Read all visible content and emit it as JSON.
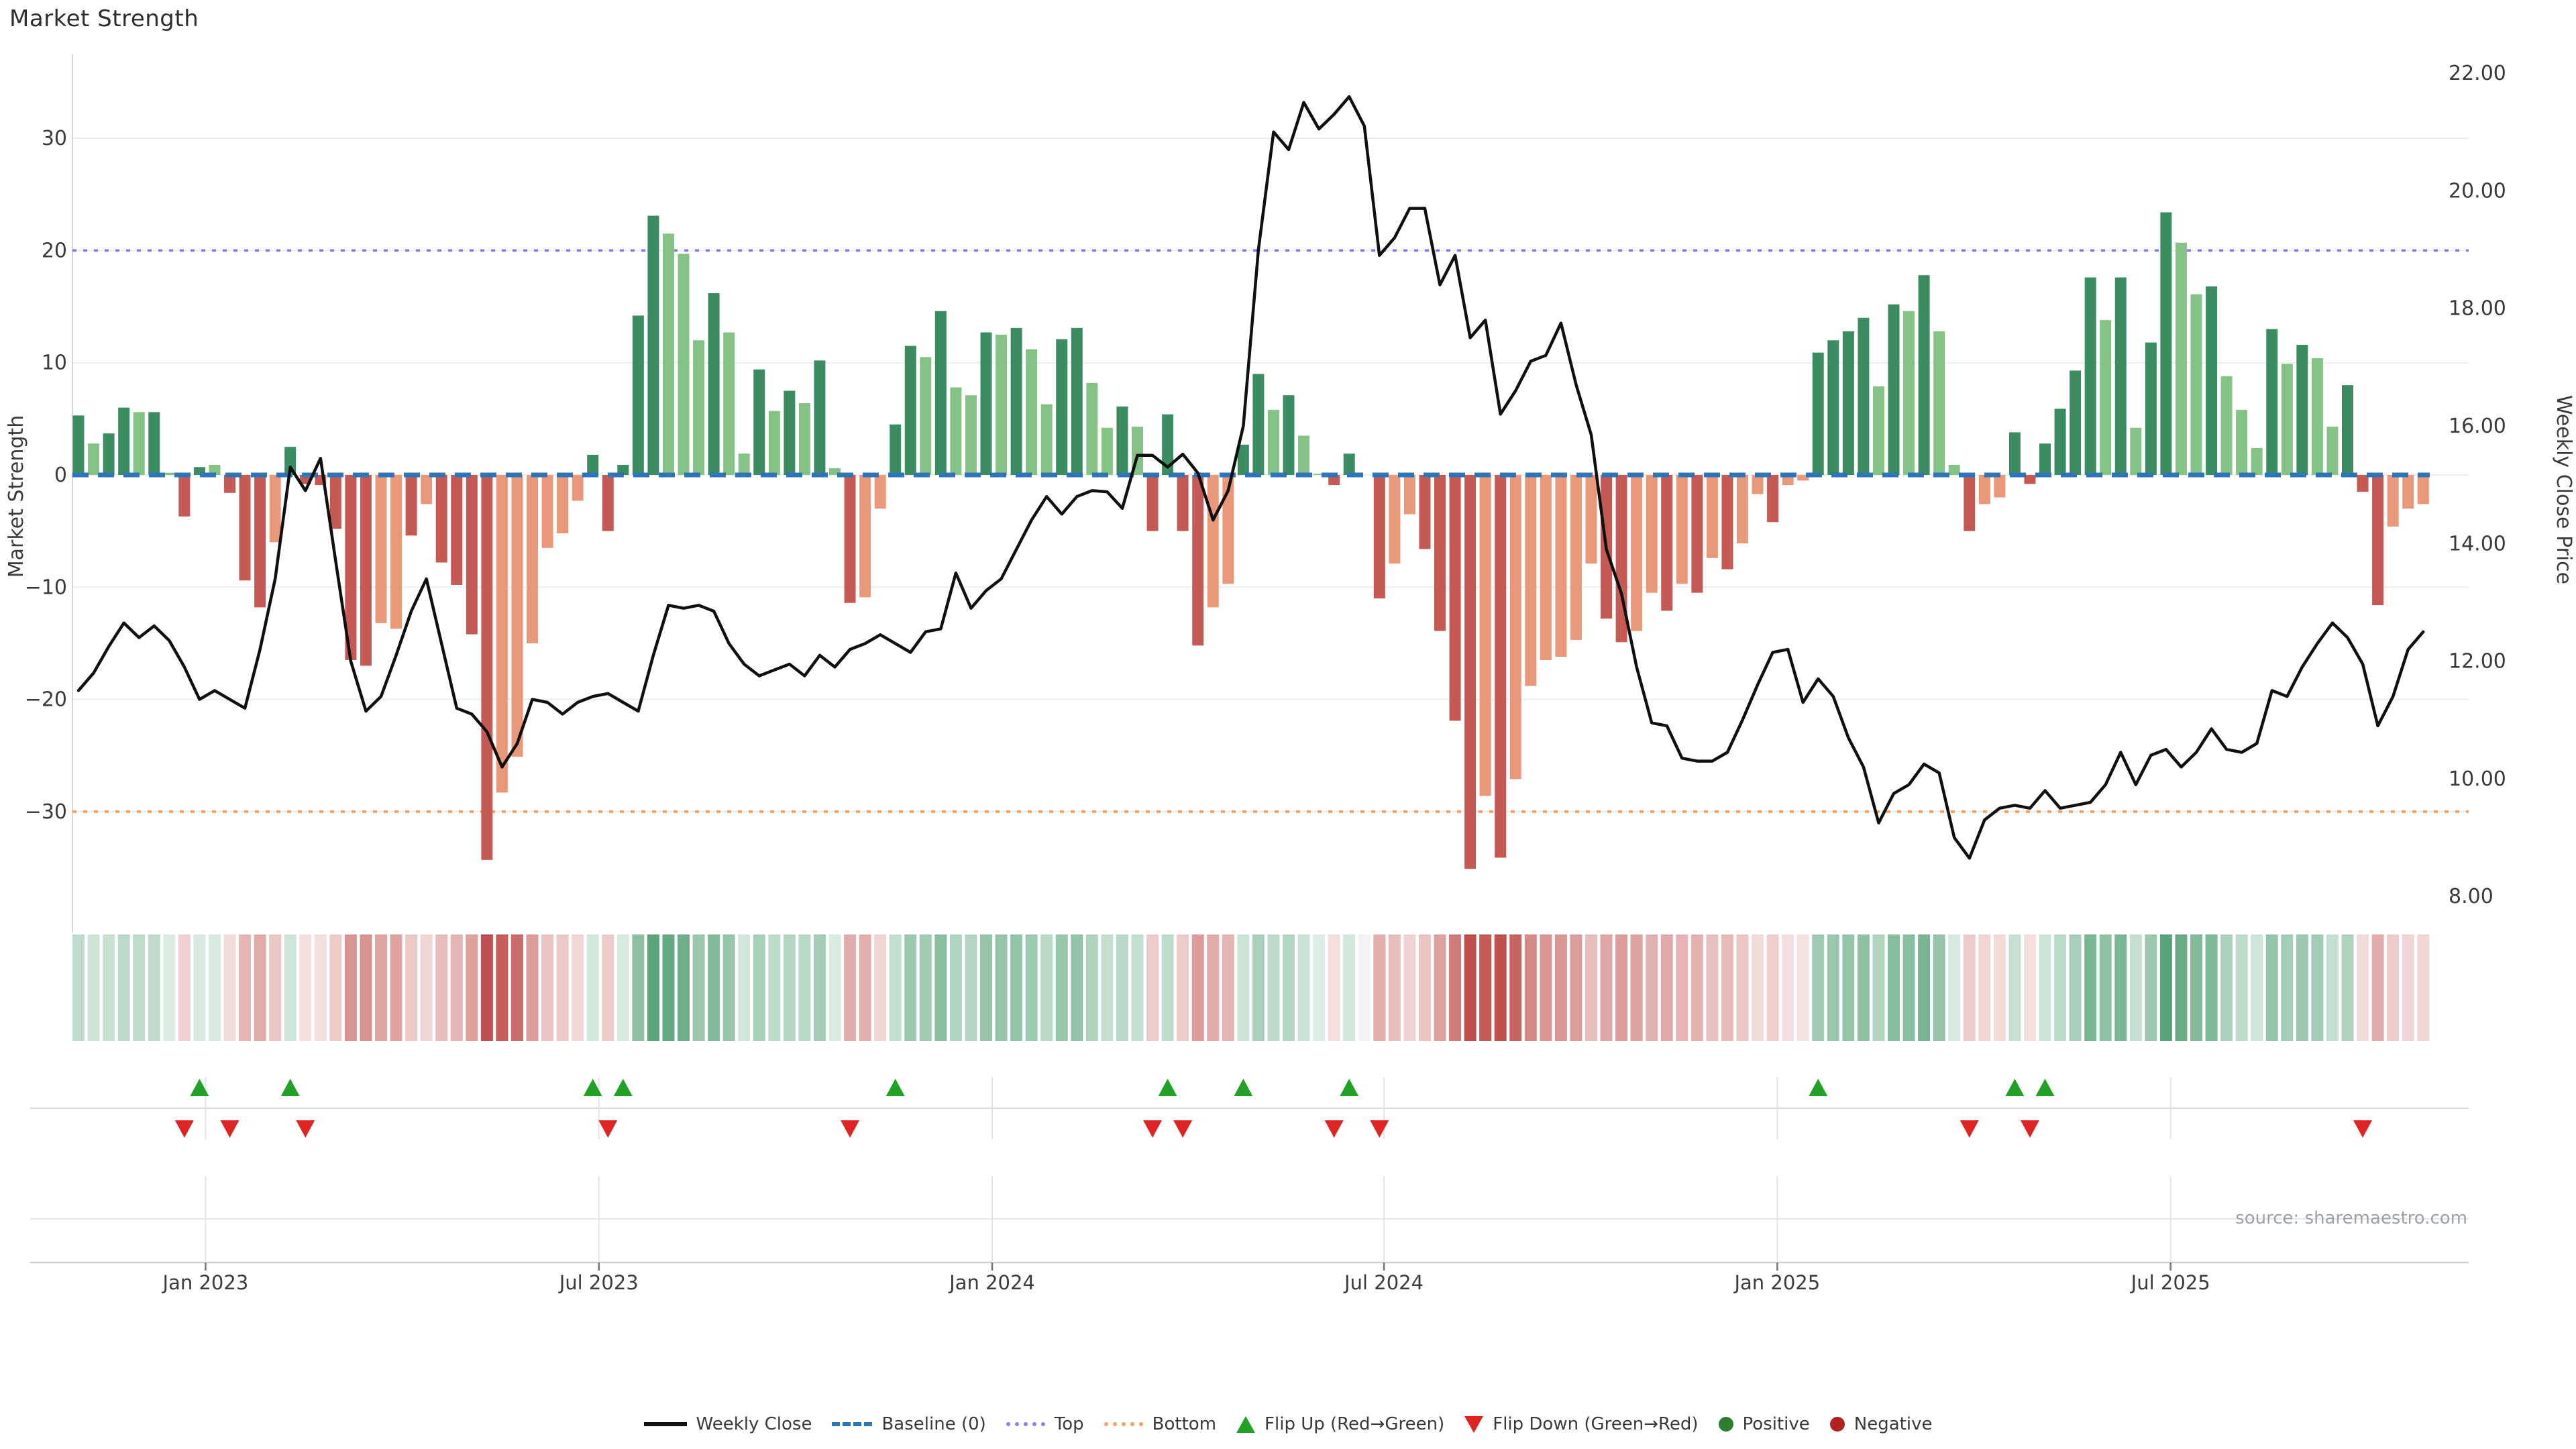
{
  "title": "Market Strength",
  "source": "source: sharemaestro.com",
  "left_axis": {
    "label": "Market Strength",
    "ticks": [
      30,
      20,
      10,
      0,
      -10,
      -20,
      -30
    ]
  },
  "right_axis": {
    "label": "Weekly Close Price",
    "ticks": [
      "22.00",
      "20.00",
      "18.00",
      "16.00",
      "14.00",
      "12.00",
      "10.00",
      "8.00"
    ]
  },
  "x_axis": {
    "ticks": [
      "Jan 2023",
      "Jul 2023",
      "Jan 2024",
      "Jul 2024",
      "Jan 2025",
      "Jul 2025"
    ],
    "tick_weeks": [
      9.4,
      35.4,
      61.4,
      87.3,
      113.3,
      139.3
    ]
  },
  "legend": [
    {
      "type": "line",
      "color": "#111111",
      "label": "Weekly Close"
    },
    {
      "type": "dash",
      "color": "#2e75b5",
      "label": "Baseline (0)"
    },
    {
      "type": "dots",
      "color": "#8d80e8",
      "label": "Top"
    },
    {
      "type": "dots-o",
      "color": "#f2a263",
      "label": "Bottom"
    },
    {
      "type": "triup",
      "color": "#23a127",
      "label": "Flip Up (Red→Green)"
    },
    {
      "type": "tridown",
      "color": "#e02424",
      "label": "Flip Down (Green→Red)"
    },
    {
      "type": "dot",
      "color": "#2e7d32",
      "label": "Positive"
    },
    {
      "type": "dot",
      "color": "#b22222",
      "label": "Negative"
    }
  ],
  "colors": {
    "bar_dark_green": "#3c8c61",
    "bar_light_green": "#85c285",
    "bar_dark_red": "#c55a55",
    "bar_salmon": "#e99879",
    "baseline": "#2e75b5",
    "top_line": "#8d80e8",
    "bottom_line": "#f2a263",
    "price_line": "#101010",
    "grid": "#ebedf0",
    "axis": "#cfcfd4",
    "tick_text": "#3a3a3a",
    "source_text": "#9aa1a8",
    "flip_up": "#23a127",
    "flip_down": "#e02424"
  },
  "chart_data": {
    "type": "bar+line",
    "title": "Market Strength",
    "ylabel_left": "Market Strength",
    "ylabel_right": "Weekly Close Price",
    "ylim_left": [
      -37,
      37
    ],
    "ylim_right": [
      7.4,
      22.2
    ],
    "baseline": 0,
    "top_threshold": 20,
    "bottom_threshold": -30,
    "weeks": 156,
    "strength": {
      "name": "Market Strength (weekly bars)",
      "values": [
        5.3,
        2.8,
        3.7,
        6.0,
        5.6,
        5.6,
        0.2,
        -3.7,
        0.7,
        0.9,
        -1.6,
        -9.4,
        -11.8,
        -6.0,
        2.5,
        -0.8,
        -0.9,
        -4.8,
        -16.5,
        -17.0,
        -13.2,
        -13.7,
        -5.4,
        -2.6,
        -7.8,
        -9.8,
        -14.2,
        -34.3,
        -28.3,
        -25.1,
        -15.0,
        -6.5,
        -5.2,
        -2.3,
        1.8,
        -5.0,
        0.9,
        14.2,
        23.1,
        21.5,
        19.7,
        12.0,
        16.2,
        12.7,
        1.9,
        9.4,
        5.7,
        7.5,
        6.4,
        10.2,
        0.6,
        -11.4,
        -10.9,
        -3.0,
        4.5,
        11.5,
        10.5,
        14.6,
        7.8,
        7.1,
        12.7,
        12.5,
        13.1,
        11.2,
        6.3,
        12.1,
        13.1,
        8.2,
        4.2,
        6.1,
        4.3,
        -5.0,
        5.4,
        -5.0,
        -15.2,
        -11.8,
        -9.7,
        2.7,
        9.0,
        5.8,
        7.1,
        3.5,
        0.1,
        -0.9,
        1.9,
        0.0,
        -11.0,
        -7.9,
        -3.5,
        -6.6,
        -13.9,
        -21.9,
        -35.1,
        -28.6,
        -34.1,
        -27.1,
        -18.8,
        -16.5,
        -16.2,
        -14.7,
        -7.9,
        -12.8,
        -14.9,
        -13.9,
        -10.5,
        -12.1,
        -9.7,
        -10.5,
        -7.4,
        -8.4,
        -6.1,
        -1.7,
        -4.2,
        -0.9,
        -0.5,
        10.9,
        12.0,
        12.8,
        14.0,
        7.9,
        15.2,
        14.6,
        17.8,
        12.8,
        0.9,
        -5.0,
        -2.6,
        -2.0,
        3.8,
        -0.8,
        2.8,
        5.9,
        9.3,
        17.6,
        13.8,
        17.6,
        4.2,
        11.8,
        23.4,
        20.7,
        16.1,
        16.8,
        8.8,
        5.8,
        2.4,
        13.0,
        9.9,
        11.6,
        10.4,
        4.3,
        8.0,
        -1.5,
        -11.6,
        -4.6,
        -3.0,
        -2.6
      ],
      "shades": "DLDDLDLRDLRRRSDRRRRRSSRSRRRRSSSSSSDRDDDLLLDLLDLDLDLRSSDDLDLLDLDLLDDLLDLRDRRSSDDLDLLRDNRSSRRRRSRSSSSSSRRSSRSRSRSSRSSDDDDLDLDLLRSSDRDDDDLDLDDLLDLLLDLDLLDRRSSS",
      "shade_legend": {
        "D": "dark green (Positive strong)",
        "L": "light green (Positive)",
        "R": "dark red (Negative strong)",
        "S": "salmon (Negative)",
        "N": "zero / no bar"
      }
    },
    "weekly_close": {
      "name": "Weekly Close",
      "values": [
        11.5,
        11.8,
        12.25,
        12.65,
        12.4,
        12.6,
        12.35,
        11.9,
        11.35,
        11.5,
        11.35,
        11.2,
        12.2,
        13.4,
        15.3,
        14.9,
        15.45,
        13.7,
        12.0,
        11.15,
        11.4,
        12.1,
        12.85,
        13.4,
        12.3,
        11.2,
        11.1,
        10.8,
        10.2,
        10.6,
        11.35,
        11.3,
        11.1,
        11.3,
        11.4,
        11.45,
        11.3,
        11.15,
        12.1,
        12.95,
        12.9,
        12.95,
        12.85,
        12.3,
        11.95,
        11.75,
        11.85,
        11.95,
        11.75,
        12.1,
        11.9,
        12.2,
        12.3,
        12.45,
        12.3,
        12.15,
        12.5,
        12.55,
        13.5,
        12.9,
        13.2,
        13.4,
        13.9,
        14.4,
        14.8,
        14.5,
        14.8,
        14.9,
        14.88,
        14.6,
        15.5,
        15.5,
        15.3,
        15.52,
        15.2,
        14.4,
        14.9,
        16.0,
        19.0,
        21.0,
        20.7,
        21.5,
        21.05,
        21.3,
        21.6,
        21.1,
        18.9,
        19.2,
        19.7,
        19.7,
        18.4,
        18.9,
        17.5,
        17.8,
        16.2,
        16.6,
        17.1,
        17.2,
        17.75,
        16.7,
        15.85,
        13.9,
        13.15,
        11.9,
        10.95,
        10.9,
        10.35,
        10.3,
        10.3,
        10.45,
        11.0,
        11.6,
        12.15,
        12.2,
        11.3,
        11.7,
        11.4,
        10.7,
        10.2,
        9.25,
        9.75,
        9.9,
        10.25,
        10.1,
        9.0,
        8.65,
        9.3,
        9.5,
        9.55,
        9.5,
        9.8,
        9.5,
        9.55,
        9.6,
        9.9,
        10.45,
        9.9,
        10.4,
        10.5,
        10.2,
        10.45,
        10.85,
        10.5,
        10.45,
        10.6,
        11.5,
        11.4,
        11.9,
        12.3,
        12.65,
        12.4,
        11.95,
        10.9,
        11.4,
        12.2,
        12.5
      ]
    },
    "flip_up_weeks": [
      9,
      15,
      35,
      37,
      55,
      73,
      78,
      85,
      116,
      129,
      131
    ],
    "flip_down_weeks": [
      8,
      11,
      16,
      36,
      52,
      72,
      74,
      84,
      87,
      126,
      130,
      152
    ],
    "heat_strip": "same weekly values as strength; green=positive, red=negative, intensity proportional to magnitude",
    "grid": "horizontal at left-axis ticks",
    "legend_position": "bottom center"
  }
}
